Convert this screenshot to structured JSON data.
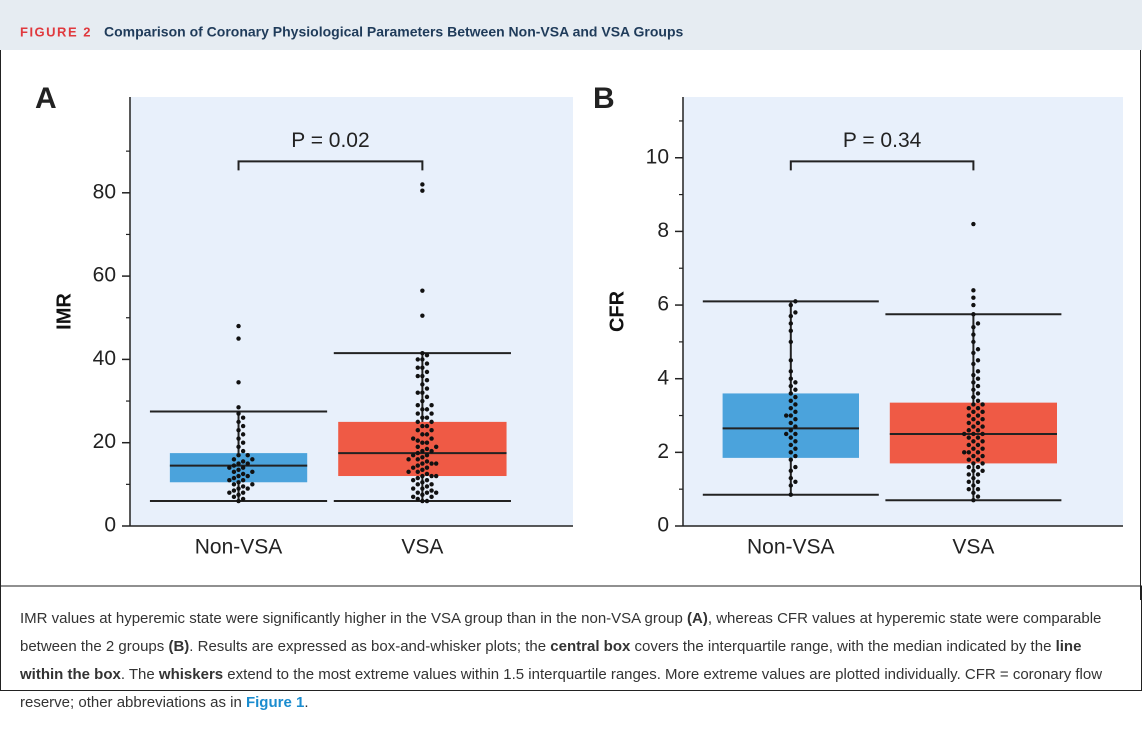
{
  "header": {
    "label": "FIGURE 2",
    "title": "Comparison of Coronary Physiological Parameters Between Non-VSA and VSA Groups"
  },
  "chart_data": [
    {
      "type": "box",
      "panel": "A",
      "ylabel": "IMR",
      "annotation": "P = 0.02",
      "categories": [
        "Non-VSA",
        "VSA"
      ],
      "ylim": [
        0,
        103
      ],
      "yticks": [
        0,
        20,
        40,
        60,
        80
      ],
      "yminorticks": [
        10,
        30,
        50,
        70,
        90
      ],
      "background": "#e8f0fb",
      "boxes": [
        {
          "color": "#4ba3dc",
          "min": 6,
          "q1": 10.5,
          "median": 14.5,
          "q3": 17.5,
          "max": 27.5,
          "points": [
            6,
            6.5,
            7,
            7.5,
            8,
            8,
            8.5,
            9,
            9,
            9.5,
            10,
            10,
            10.5,
            11,
            11,
            11.5,
            12,
            12,
            12.5,
            13,
            13,
            13.5,
            14,
            14,
            14.5,
            15,
            15,
            15.5,
            16,
            16,
            17,
            17,
            18,
            19,
            20,
            21,
            22,
            23,
            24,
            25,
            26,
            27,
            28.5,
            34.5,
            45,
            48
          ]
        },
        {
          "color": "#ef5a45",
          "min": 6,
          "q1": 12,
          "median": 17.5,
          "q3": 25,
          "max": 41.5,
          "points": [
            6,
            6,
            6.5,
            7,
            7,
            7.5,
            8,
            8,
            8,
            8.5,
            9,
            9,
            9.5,
            10,
            10,
            10.5,
            11,
            11,
            11.5,
            12,
            12,
            12,
            12.5,
            13,
            13,
            13.5,
            14,
            14,
            14.5,
            15,
            15,
            15,
            15.5,
            16,
            16,
            16.5,
            17,
            17,
            17.5,
            18,
            18,
            18.5,
            19,
            19,
            20,
            20,
            20.5,
            21,
            21,
            22,
            22,
            23,
            23,
            24,
            24,
            25,
            25,
            26,
            26,
            27,
            27,
            28,
            28,
            29,
            29,
            30,
            31,
            32,
            32,
            33,
            34,
            35,
            36,
            36,
            37,
            38,
            38,
            39,
            40,
            40,
            41,
            41.5,
            50.5,
            56.5,
            80.5,
            82
          ]
        }
      ]
    },
    {
      "type": "box",
      "panel": "B",
      "ylabel": "CFR",
      "annotation": "P = 0.34",
      "categories": [
        "Non-VSA",
        "VSA"
      ],
      "ylim": [
        0,
        11.65
      ],
      "yticks": [
        0,
        2,
        4,
        6,
        8,
        10
      ],
      "yminorticks": [
        1,
        3,
        5,
        7,
        9,
        11
      ],
      "background": "#e8f0fb",
      "boxes": [
        {
          "color": "#4ba3dc",
          "min": 0.85,
          "q1": 1.85,
          "median": 2.65,
          "q3": 3.6,
          "max": 6.1,
          "points": [
            0.85,
            1.1,
            1.2,
            1.3,
            1.5,
            1.6,
            1.8,
            1.9,
            2.0,
            2.1,
            2.2,
            2.3,
            2.4,
            2.5,
            2.5,
            2.6,
            2.7,
            2.8,
            2.9,
            3.0,
            3.0,
            3.1,
            3.2,
            3.3,
            3.4,
            3.5,
            3.6,
            3.7,
            3.8,
            3.9,
            4.0,
            4.2,
            4.5,
            5.0,
            5.3,
            5.5,
            5.7,
            5.8,
            6.0,
            6.1
          ]
        },
        {
          "color": "#ef5a45",
          "min": 0.7,
          "q1": 1.7,
          "median": 2.5,
          "q3": 3.35,
          "max": 5.75,
          "points": [
            0.7,
            0.8,
            0.9,
            1.0,
            1.0,
            1.1,
            1.2,
            1.2,
            1.3,
            1.4,
            1.4,
            1.5,
            1.5,
            1.6,
            1.6,
            1.7,
            1.7,
            1.8,
            1.8,
            1.9,
            1.9,
            2.0,
            2.0,
            2.0,
            2.1,
            2.1,
            2.2,
            2.2,
            2.3,
            2.3,
            2.4,
            2.4,
            2.5,
            2.5,
            2.5,
            2.6,
            2.6,
            2.7,
            2.7,
            2.8,
            2.8,
            2.9,
            2.9,
            3.0,
            3.0,
            3.1,
            3.1,
            3.2,
            3.2,
            3.3,
            3.3,
            3.4,
            3.5,
            3.6,
            3.7,
            3.8,
            3.9,
            4.0,
            4.1,
            4.2,
            4.4,
            4.5,
            4.7,
            4.8,
            5.0,
            5.2,
            5.4,
            5.5,
            5.75,
            6.0,
            6.2,
            6.4,
            8.2
          ]
        }
      ]
    }
  ],
  "caption": [
    {
      "text": "IMR values at hyperemic state were significantly higher in the VSA group than in the non-VSA group "
    },
    {
      "text": "(A)",
      "bold": true
    },
    {
      "text": ", whereas CFR values at hyperemic state were comparable between the 2 groups "
    },
    {
      "text": "(B)",
      "bold": true
    },
    {
      "text": ". Results are expressed as box-and-whisker plots; the "
    },
    {
      "text": "central box",
      "bold": true
    },
    {
      "text": " covers the interquartile range, with the median indicated by the "
    },
    {
      "text": "line within the box",
      "bold": true
    },
    {
      "text": ". The "
    },
    {
      "text": "whiskers",
      "bold": true
    },
    {
      "text": " extend to the most extreme values within 1.5 interquartile ranges. More extreme values are plotted individually. CFR = coronary flow reserve; other abbreviations as in "
    },
    {
      "text": "Figure 1",
      "bold": true,
      "link": true
    },
    {
      "text": "."
    }
  ]
}
